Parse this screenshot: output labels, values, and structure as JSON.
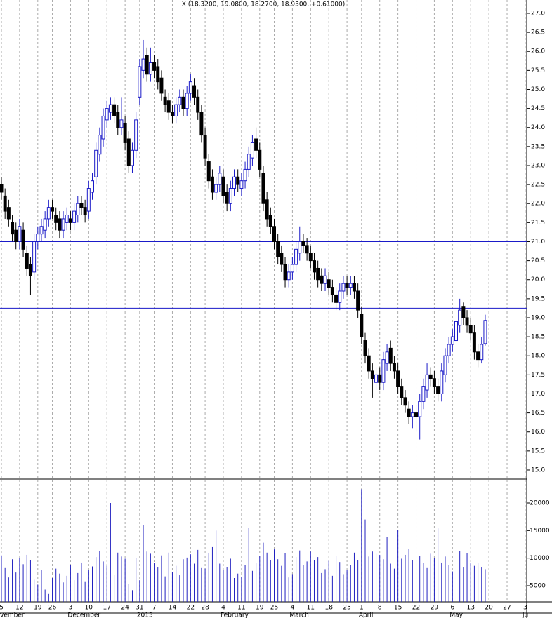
{
  "chart_data": [
    {
      "type": "candlestick",
      "title": "X (18.3200, 19.0800, 18.2700, 18.9300, +0.61000)",
      "up_color": "#1a1ac8",
      "down_color": "#000000",
      "open": [
        22.5,
        22.2,
        21.9,
        21.5,
        21.3,
        21.0,
        21.3,
        20.7,
        20.4,
        20.2,
        21.0,
        21.2,
        21.3,
        21.6,
        21.9,
        21.7,
        21.6,
        21.3,
        21.5,
        21.6,
        21.5,
        21.7,
        22.0,
        21.9,
        21.8,
        22.3,
        22.7,
        23.3,
        23.7,
        24.2,
        24.4,
        24.6,
        24.4,
        24.0,
        24.1,
        23.7,
        23.0,
        23.4,
        24.8,
        25.5,
        25.9,
        25.4,
        25.7,
        25.6,
        25.3,
        24.8,
        24.7,
        24.4,
        24.3,
        24.6,
        24.8,
        24.5,
        24.9,
        25.1,
        24.8,
        24.4,
        23.8,
        23.1,
        22.7,
        22.3,
        22.5,
        22.7,
        22.3,
        22.0,
        22.4,
        22.7,
        22.4,
        22.6,
        22.9,
        23.2,
        23.7,
        23.4,
        22.8,
        22.1,
        21.7,
        21.4,
        21.0,
        20.7,
        20.4,
        20.0,
        20.2,
        20.4,
        20.7,
        21.0,
        20.9,
        20.7,
        20.5,
        20.3,
        20.1,
        19.9,
        20.0,
        19.8,
        19.6,
        19.4,
        19.7,
        19.9,
        19.8,
        19.9,
        19.7,
        19.1,
        18.4,
        18.0,
        17.6,
        17.3,
        17.5,
        17.3,
        17.8,
        18.2,
        17.8,
        17.6,
        17.2,
        16.9,
        16.6,
        16.4,
        16.5,
        16.4,
        16.8,
        17.1,
        17.5,
        17.4,
        17.2,
        17.0,
        17.5,
        18.0,
        18.3,
        18.4,
        18.8,
        19.3,
        19.0,
        18.8,
        18.6,
        18.1,
        17.9,
        18.32
      ],
      "high": [
        22.7,
        22.4,
        22.1,
        21.7,
        21.5,
        21.6,
        21.5,
        20.9,
        20.6,
        21.2,
        21.4,
        21.6,
        21.8,
        22.1,
        22.1,
        21.9,
        21.8,
        21.8,
        21.9,
        21.8,
        22.0,
        22.2,
        22.2,
        22.1,
        22.6,
        22.8,
        23.6,
        24.0,
        24.5,
        24.7,
        24.8,
        24.8,
        24.6,
        24.8,
        24.3,
        23.9,
        23.6,
        24.4,
        25.8,
        26.3,
        26.1,
        26.1,
        25.9,
        25.8,
        25.5,
        25.0,
        24.9,
        24.6,
        24.8,
        25.0,
        25.0,
        25.1,
        25.4,
        25.3,
        25.0,
        24.6,
        24.0,
        23.3,
        22.9,
        22.7,
        23.0,
        22.9,
        22.5,
        22.6,
        22.9,
        22.9,
        22.8,
        23.1,
        23.5,
        23.8,
        24.0,
        23.6,
        23.0,
        22.3,
        21.9,
        21.6,
        21.2,
        20.9,
        20.6,
        20.4,
        20.6,
        21.0,
        21.4,
        21.2,
        21.1,
        20.9,
        20.7,
        20.5,
        20.3,
        20.3,
        20.2,
        20.0,
        19.8,
        19.9,
        20.1,
        20.1,
        20.1,
        20.1,
        19.9,
        19.3,
        18.6,
        18.2,
        17.8,
        17.7,
        17.7,
        18.1,
        18.3,
        18.4,
        18.0,
        17.8,
        17.4,
        17.1,
        16.8,
        16.7,
        16.7,
        17.0,
        17.4,
        17.8,
        17.7,
        17.6,
        17.4,
        17.8,
        18.2,
        18.5,
        18.7,
        19.1,
        19.5,
        19.4,
        19.2,
        19.0,
        18.8,
        18.3,
        18.5,
        19.08
      ],
      "low": [
        22.1,
        21.6,
        21.4,
        21.0,
        20.8,
        20.8,
        20.6,
        20.1,
        19.6,
        20.0,
        20.8,
        21.0,
        21.1,
        21.4,
        21.6,
        21.3,
        21.1,
        21.1,
        21.3,
        21.3,
        21.3,
        21.5,
        21.7,
        21.5,
        21.6,
        22.1,
        22.5,
        23.1,
        23.5,
        24.0,
        24.2,
        24.1,
        23.8,
        23.8,
        23.4,
        22.8,
        22.8,
        23.2,
        24.6,
        25.3,
        25.2,
        25.2,
        25.3,
        25.0,
        24.7,
        24.4,
        24.2,
        24.1,
        24.1,
        24.4,
        24.3,
        24.3,
        24.7,
        24.6,
        24.2,
        23.6,
        23.0,
        22.4,
        22.1,
        22.1,
        22.3,
        22.0,
        21.8,
        21.8,
        22.2,
        22.3,
        22.2,
        22.4,
        22.7,
        23.0,
        23.2,
        22.7,
        21.8,
        21.4,
        21.2,
        20.8,
        20.4,
        20.2,
        19.8,
        19.8,
        20.0,
        20.2,
        20.5,
        20.7,
        20.5,
        20.3,
        20.0,
        19.8,
        19.7,
        19.7,
        19.6,
        19.4,
        19.2,
        19.2,
        19.5,
        19.6,
        19.6,
        19.5,
        19.0,
        18.3,
        17.8,
        17.4,
        16.9,
        17.1,
        17.1,
        17.1,
        17.6,
        17.6,
        17.4,
        17.0,
        16.7,
        16.5,
        16.2,
        16.1,
        16.0,
        15.8,
        16.6,
        16.9,
        17.2,
        17.0,
        16.8,
        16.8,
        17.3,
        17.8,
        18.1,
        18.2,
        18.6,
        18.8,
        18.6,
        18.4,
        17.9,
        17.7,
        17.8,
        18.27
      ],
      "close": [
        22.3,
        21.8,
        21.6,
        21.2,
        21.0,
        21.4,
        20.8,
        20.3,
        20.1,
        21.0,
        21.2,
        21.4,
        21.6,
        21.9,
        21.8,
        21.5,
        21.3,
        21.6,
        21.7,
        21.5,
        21.8,
        22.0,
        21.9,
        21.7,
        22.4,
        22.6,
        23.4,
        23.8,
        24.3,
        24.5,
        24.6,
        24.3,
        24.0,
        24.2,
        23.6,
        23.0,
        23.4,
        24.2,
        25.6,
        25.8,
        25.4,
        25.7,
        25.5,
        25.2,
        24.9,
        24.6,
        24.4,
        24.3,
        24.6,
        24.8,
        24.5,
        24.9,
        25.2,
        24.8,
        24.4,
        23.8,
        23.2,
        22.6,
        22.3,
        22.5,
        22.8,
        22.2,
        22.0,
        22.4,
        22.7,
        22.5,
        22.6,
        22.9,
        23.3,
        23.6,
        23.4,
        22.9,
        22.0,
        21.6,
        21.4,
        21.0,
        20.6,
        20.4,
        20.0,
        20.2,
        20.4,
        20.8,
        21.0,
        20.9,
        20.7,
        20.5,
        20.2,
        20.0,
        19.9,
        20.1,
        19.8,
        19.6,
        19.4,
        19.7,
        19.9,
        19.8,
        19.9,
        19.7,
        19.2,
        18.5,
        18.0,
        17.6,
        17.4,
        17.5,
        17.3,
        17.9,
        18.1,
        17.8,
        17.6,
        17.2,
        16.9,
        16.7,
        16.4,
        16.5,
        16.4,
        16.8,
        17.2,
        17.5,
        17.4,
        17.2,
        17.0,
        17.6,
        18.0,
        18.3,
        18.5,
        18.9,
        19.2,
        19.0,
        18.8,
        18.6,
        18.1,
        17.9,
        18.3,
        18.93
      ],
      "ylim": [
        14.76,
        27.35
      ],
      "yticks": [
        {
          "value": 15.0,
          "label": "15.0"
        },
        {
          "value": 15.5,
          "label": "15.5"
        },
        {
          "value": 16.0,
          "label": "16.0"
        },
        {
          "value": 16.5,
          "label": "16.5"
        },
        {
          "value": 17.0,
          "label": "17.0"
        },
        {
          "value": 17.5,
          "label": "17.5"
        },
        {
          "value": 18.0,
          "label": "18.0"
        },
        {
          "value": 18.5,
          "label": "18.5"
        },
        {
          "value": 19.0,
          "label": "19.0"
        },
        {
          "value": 19.5,
          "label": "19.5"
        },
        {
          "value": 20.0,
          "label": "20.0"
        },
        {
          "value": 20.5,
          "label": "20.5"
        },
        {
          "value": 21.0,
          "label": "21.0"
        },
        {
          "value": 21.5,
          "label": "21.5"
        },
        {
          "value": 22.0,
          "label": "22.0"
        },
        {
          "value": 22.5,
          "label": "22.5"
        },
        {
          "value": 23.0,
          "label": "23.0"
        },
        {
          "value": 23.5,
          "label": "23.5"
        },
        {
          "value": 24.0,
          "label": "24.0"
        },
        {
          "value": 24.5,
          "label": "24.5"
        },
        {
          "value": 25.0,
          "label": "25.0"
        },
        {
          "value": 25.5,
          "label": "25.5"
        },
        {
          "value": 26.0,
          "label": "26.0"
        },
        {
          "value": 26.5,
          "label": "26.5"
        },
        {
          "value": 27.0,
          "label": "27.0"
        }
      ],
      "horizontal_lines": [
        21.0,
        19.25
      ],
      "line_color": "#1a1ac8"
    },
    {
      "type": "bar",
      "color": "#2020c0",
      "values": [
        10500,
        8200,
        6500,
        9800,
        7400,
        10000,
        8900,
        10600,
        9700,
        6100,
        5200,
        7800,
        4300,
        3500,
        6400,
        8100,
        7200,
        5600,
        6800,
        8800,
        6000,
        7300,
        9200,
        5800,
        7900,
        8500,
        10200,
        11300,
        9400,
        8600,
        20000,
        7000,
        11000,
        10300,
        9900,
        5300,
        4200,
        10000,
        6000,
        16000,
        11200,
        10800,
        9100,
        8300,
        10500,
        6700,
        11000,
        7500,
        8600,
        6900,
        9800,
        10100,
        10700,
        9000,
        11500,
        8200,
        8100,
        10900,
        12000,
        15000,
        9000,
        7800,
        8400,
        9900,
        6400,
        7200,
        6600,
        8800,
        15500,
        7700,
        9200,
        10400,
        12800,
        11000,
        9600,
        11600,
        9800,
        8600,
        10900,
        6500,
        7100,
        10200,
        11400,
        8700,
        9400,
        11200,
        9600,
        10200,
        7300,
        8000,
        9500,
        6800,
        10400,
        9300,
        7100,
        7900,
        8800,
        11000,
        9600,
        22500,
        17000,
        10300,
        11200,
        10800,
        10600,
        9800,
        13800,
        9000,
        8100,
        15100,
        9900,
        10600,
        11700,
        9600,
        9700,
        10400,
        9100,
        8200,
        10800,
        10000,
        15400,
        9200,
        10300,
        8700,
        7600,
        9900,
        11300,
        8300,
        10900,
        9100,
        8600,
        9200,
        8300,
        8000
      ],
      "ylim": [
        2076,
        24322
      ],
      "yticks": [
        5000,
        10000,
        15000,
        20000
      ],
      "xticks": [
        {
          "value": 0,
          "label": "5"
        },
        {
          "value": 5,
          "label": "12"
        },
        {
          "value": 10,
          "label": "19"
        },
        {
          "value": 14,
          "label": "26"
        },
        {
          "value": 19,
          "label": "3"
        },
        {
          "value": 24,
          "label": "10"
        },
        {
          "value": 29,
          "label": "17"
        },
        {
          "value": 34,
          "label": "24"
        },
        {
          "value": 38,
          "label": "31"
        },
        {
          "value": 42,
          "label": "7"
        },
        {
          "value": 47,
          "label": "14"
        },
        {
          "value": 52,
          "label": "22"
        },
        {
          "value": 56,
          "label": "28"
        },
        {
          "value": 61,
          "label": "4"
        },
        {
          "value": 66,
          "label": "11"
        },
        {
          "value": 71,
          "label": "19"
        },
        {
          "value": 75,
          "label": "25"
        },
        {
          "value": 80,
          "label": "4"
        },
        {
          "value": 85,
          "label": "11"
        },
        {
          "value": 90,
          "label": "18"
        },
        {
          "value": 95,
          "label": "25"
        },
        {
          "value": 99,
          "label": "1"
        },
        {
          "value": 104,
          "label": "8"
        },
        {
          "value": 109,
          "label": "15"
        },
        {
          "value": 114,
          "label": "22"
        },
        {
          "value": 119,
          "label": "29"
        },
        {
          "value": 124,
          "label": "6"
        },
        {
          "value": 129,
          "label": "13"
        },
        {
          "value": 134,
          "label": "20"
        },
        {
          "value": 139,
          "label": "27"
        },
        {
          "value": 144,
          "label": "3"
        }
      ],
      "month_ticks": [
        {
          "value": 0,
          "label": "vember"
        },
        {
          "value": 19,
          "label": "December"
        },
        {
          "value": 38,
          "label": "2013"
        },
        {
          "value": 61,
          "label": "February"
        },
        {
          "value": 80,
          "label": "March"
        },
        {
          "value": 99,
          "label": "April"
        },
        {
          "value": 124,
          "label": "May"
        },
        {
          "value": 144,
          "label": "Ju"
        }
      ]
    }
  ]
}
